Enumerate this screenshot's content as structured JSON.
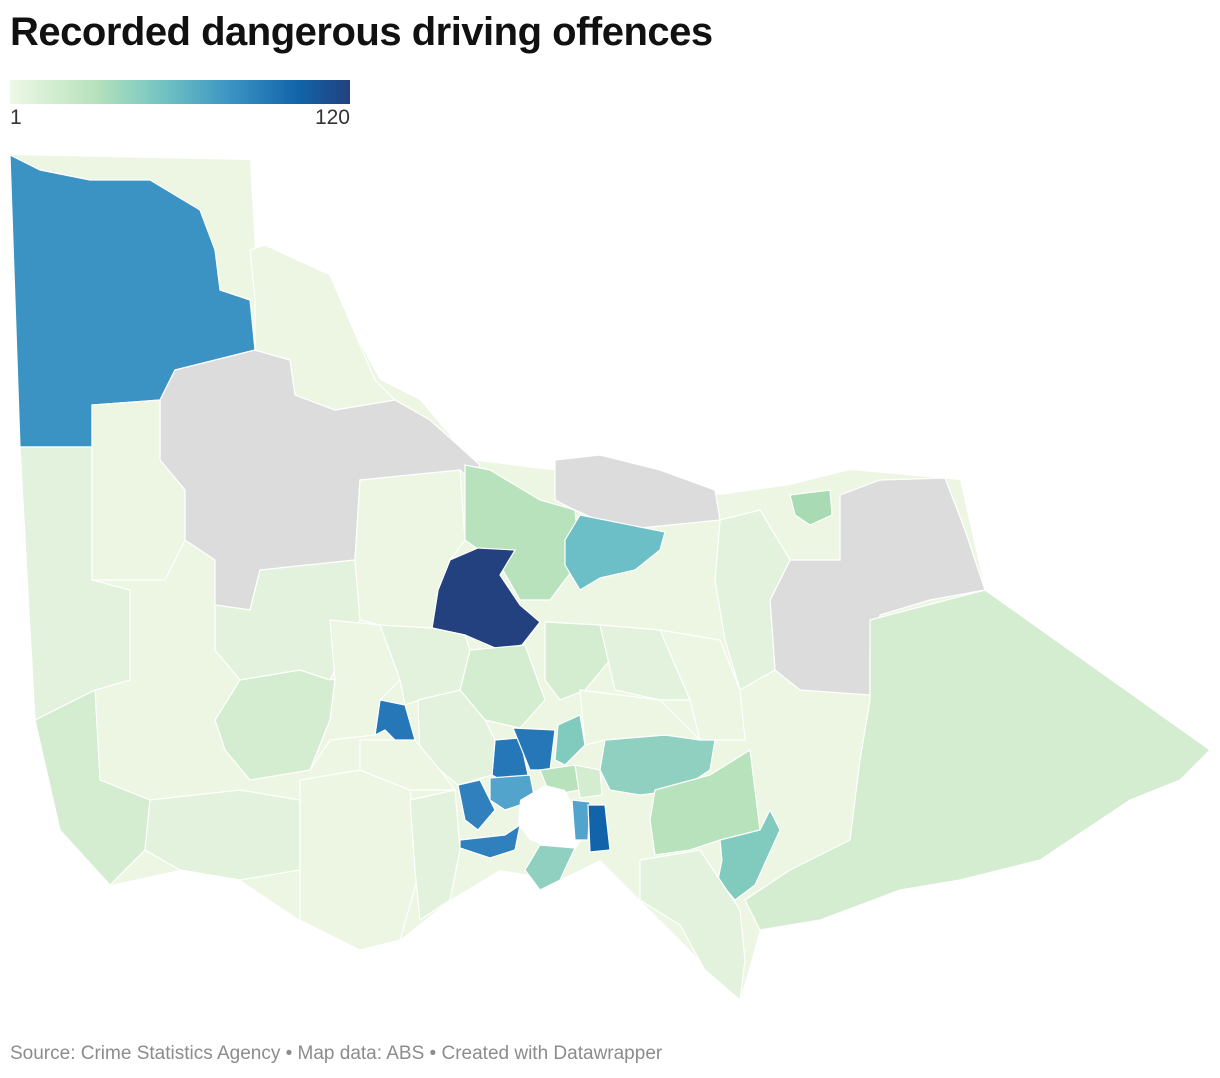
{
  "title": "Recorded dangerous driving offences",
  "legend": {
    "min_label": "1",
    "max_label": "120",
    "scale_colors": [
      "#eef8e6",
      "#b7e2bc",
      "#72c3c3",
      "#3a93c3",
      "#1164a9",
      "#23417f"
    ]
  },
  "map": {
    "no_data_color": "#dcdcdc",
    "region_colors": {
      "light": "#ecf6e3",
      "pale": "#d4ecd0",
      "mint": "#b7e2bc",
      "seafoam": "#8fd0c0",
      "teal": "#6cbfc6",
      "sky": "#52a4cd",
      "blue": "#3a93c3",
      "mid_blue": "#2577b8",
      "deep_blue": "#1164a9",
      "navy": "#23417f"
    }
  },
  "footer": {
    "text": "Source: Crime Statistics Agency • Map data: ABS • Created with Datawrapper"
  }
}
